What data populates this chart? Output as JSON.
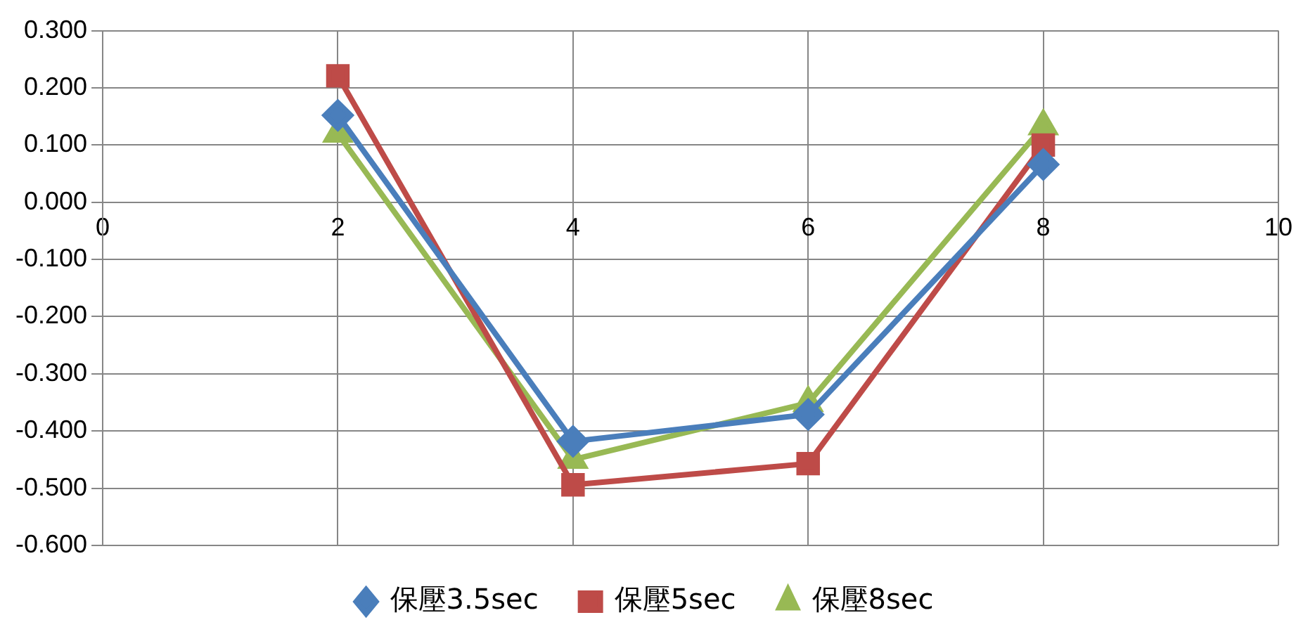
{
  "chart_data": {
    "type": "line",
    "x": [
      2,
      4,
      6,
      8
    ],
    "series": [
      {
        "name": "保壓3.5sec",
        "color": "#4a7ebb",
        "marker": "diamond",
        "values": [
          0.152,
          -0.418,
          -0.371,
          0.066
        ]
      },
      {
        "name": "保壓5sec",
        "color": "#be4b48",
        "marker": "square",
        "values": [
          0.221,
          -0.494,
          -0.457,
          0.1
        ]
      },
      {
        "name": "保壓8sec",
        "color": "#98b954",
        "marker": "triangle",
        "values": [
          0.12,
          -0.45,
          -0.351,
          0.133
        ]
      }
    ],
    "xlim": [
      0,
      10
    ],
    "xticks": [
      0,
      2,
      4,
      6,
      8,
      10
    ],
    "ylim": [
      -0.6,
      0.3
    ],
    "yticks": [
      {
        "value": -0.6,
        "label": "-0.600"
      },
      {
        "value": -0.5,
        "label": "-0.500"
      },
      {
        "value": -0.4,
        "label": "-0.400"
      },
      {
        "value": -0.3,
        "label": "-0.300"
      },
      {
        "value": -0.2,
        "label": "-0.200"
      },
      {
        "value": -0.1,
        "label": "-0.100"
      },
      {
        "value": 0,
        "label": "0.000"
      },
      {
        "value": 0.1,
        "label": "0.100"
      },
      {
        "value": 0.2,
        "label": "0.200"
      },
      {
        "value": 0.3,
        "label": "0.300"
      }
    ],
    "grid": true,
    "legend": "bottom",
    "line_style": "solid"
  }
}
